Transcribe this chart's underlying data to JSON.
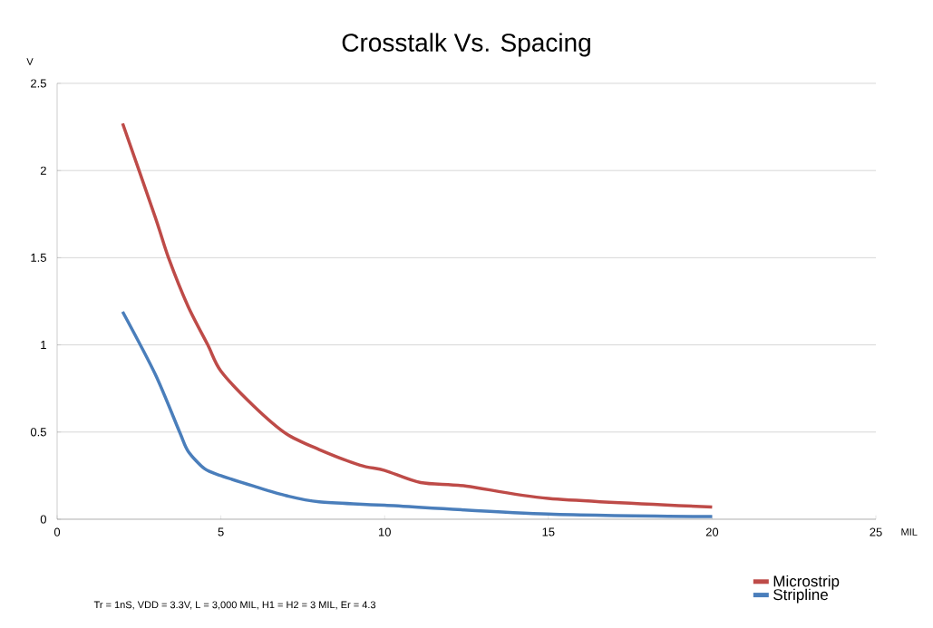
{
  "chart_data": {
    "type": "line",
    "title": "Crosstalk Vs. Spacing",
    "xlabel": "MIL",
    "ylabel": "V",
    "xlim": [
      0,
      25
    ],
    "xticks": [
      0,
      5,
      10,
      15,
      20,
      25
    ],
    "ylim": [
      0,
      2.5
    ],
    "yticks": [
      0,
      0.5,
      1,
      1.5,
      2,
      2.5
    ],
    "grid": "y",
    "legend": "bottom right",
    "marker": "none",
    "line_style": "solid",
    "annotations": [
      "Tr = 1nS, VDD = 3.3V, L = 3,000 MIL, H1 = H2 = 3 MIL, Er = 4.3"
    ],
    "series": [
      {
        "name": "Microstrip",
        "color": "#be4b48",
        "x": [
          2,
          3,
          3.4,
          4,
          4.6,
          5,
          6,
          7,
          8,
          9.25,
          10,
          11.1,
          12.5,
          15,
          20
        ],
        "values": [
          2.27,
          1.73,
          1.5,
          1.22,
          1.0,
          0.85,
          0.65,
          0.49,
          0.4,
          0.31,
          0.28,
          0.21,
          0.19,
          0.12,
          0.07
        ]
      },
      {
        "name": "Stripline",
        "color": "#4a7ebb",
        "x": [
          2,
          3,
          3.74,
          4,
          4.5,
          5,
          6,
          7,
          8,
          10,
          15,
          20
        ],
        "values": [
          1.19,
          0.83,
          0.5,
          0.39,
          0.29,
          0.25,
          0.19,
          0.135,
          0.1,
          0.08,
          0.03,
          0.015
        ]
      }
    ]
  }
}
